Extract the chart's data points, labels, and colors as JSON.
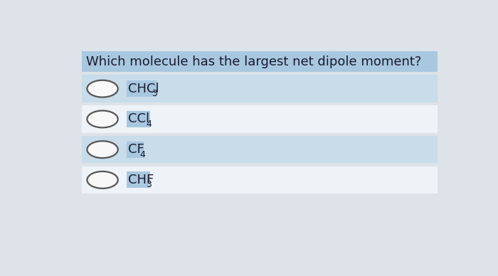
{
  "question": "Which molecule has the largest net dipole moment?",
  "options": [
    {
      "label": "CHCl",
      "sub": "3"
    },
    {
      "label": "CCl",
      "sub": "4"
    },
    {
      "label": "CF",
      "sub": "4"
    },
    {
      "label": "CHF",
      "sub": "3"
    }
  ],
  "outer_bg": "#dde3e8",
  "question_bg": "#a8c8e0",
  "row_bg_even": "#c8dcea",
  "row_bg_odd": "#eef3f7",
  "label_bg": "#a8c8e0",
  "text_color": "#1a1a2e",
  "circle_edge": "#555555",
  "circle_fill": "#f8f8f8",
  "question_fontsize": 13,
  "option_fontsize": 13,
  "sub_fontsize": 9
}
